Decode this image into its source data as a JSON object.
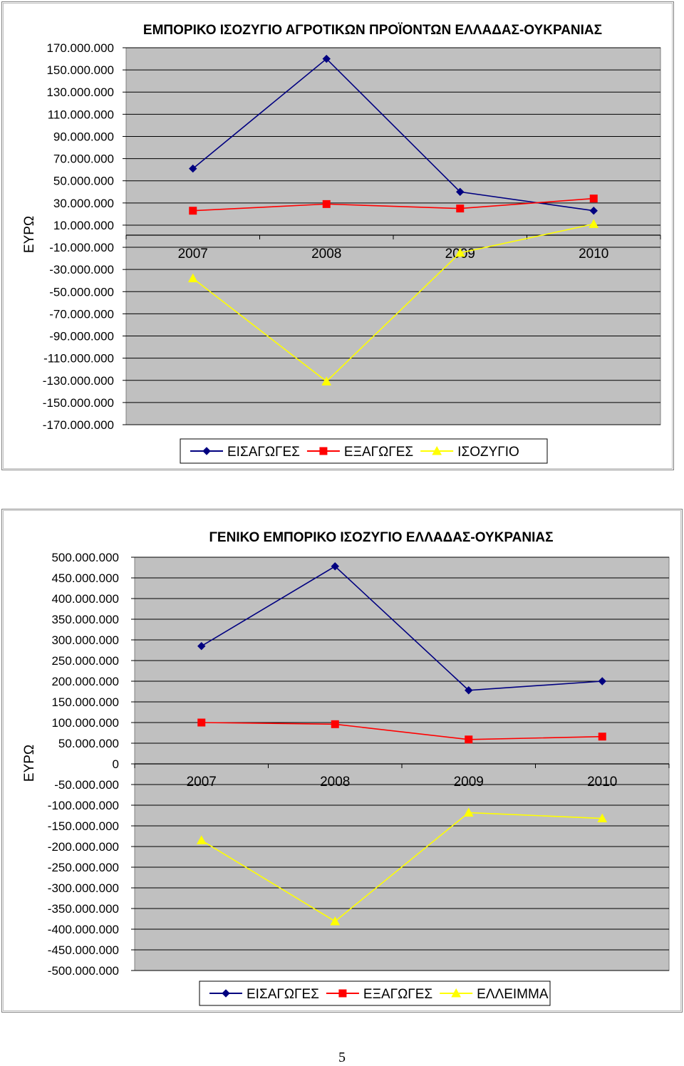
{
  "chart_data": [
    {
      "type": "line",
      "title": "ΕΜΠΟΡΙΚΟ ΙΣΟΖΥΓΙΟ ΑΓΡΟΤΙΚΩΝ ΠΡΟΪΟΝΤΩΝ ΕΛΛΑΔΑΣ-ΟΥΚΡΑΝΙΑΣ",
      "ylabel": "ΕΥΡΩ",
      "xlabel": "",
      "categories": [
        "2007",
        "2008",
        "2009",
        "2010"
      ],
      "ylim": [
        -170000000,
        170000000
      ],
      "yticks": [
        170000000,
        150000000,
        130000000,
        110000000,
        90000000,
        70000000,
        50000000,
        30000000,
        10000000,
        -10000000,
        -30000000,
        -50000000,
        -70000000,
        -90000000,
        -110000000,
        -130000000,
        -150000000,
        -170000000
      ],
      "ytick_labels": [
        "170.000.000",
        "150.000.000",
        "130.000.000",
        "110.000.000",
        "90.000.000",
        "70.000.000",
        "50.000.000",
        "30.000.000",
        "10.000.000",
        "-10.000.000",
        "-30.000.000",
        "-50.000.000",
        "-70.000.000",
        "-90.000.000",
        "-110.000.000",
        "-130.000.000",
        "-150.000.000",
        "-170.000.000"
      ],
      "grid": true,
      "legend": "bottom",
      "series": [
        {
          "name": "ΕΙΣΑΓΩΓΕΣ",
          "color": "#000080",
          "marker": "diamond",
          "values": [
            61000000,
            160000000,
            40000000,
            23000000
          ]
        },
        {
          "name": "ΕΞΑΓΩΓΕΣ",
          "color": "#ff0000",
          "marker": "square",
          "values": [
            23000000,
            29000000,
            25000000,
            34000000
          ]
        },
        {
          "name": "ΙΣΟΖΥΓΙΟ",
          "color": "#ffff00",
          "marker": "triangle",
          "values": [
            -38000000,
            -131000000,
            -15000000,
            11000000
          ]
        }
      ]
    },
    {
      "type": "line",
      "title": "ΓΕΝΙΚΟ ΕΜΠΟΡΙΚΟ ΙΣΟΖΥΓΙΟ ΕΛΛΑΔΑΣ-ΟΥΚΡΑΝΙΑΣ",
      "ylabel": "ΕΥΡΩ",
      "xlabel": "",
      "categories": [
        "2007",
        "2008",
        "2009",
        "2010"
      ],
      "ylim": [
        -500000000,
        500000000
      ],
      "yticks": [
        500000000,
        450000000,
        400000000,
        350000000,
        300000000,
        250000000,
        200000000,
        150000000,
        100000000,
        50000000,
        0,
        -50000000,
        -100000000,
        -150000000,
        -200000000,
        -250000000,
        -300000000,
        -350000000,
        -400000000,
        -450000000,
        -500000000
      ],
      "ytick_labels": [
        "500.000.000",
        "450.000.000",
        "400.000.000",
        "350.000.000",
        "300.000.000",
        "250.000.000",
        "200.000.000",
        "150.000.000",
        "100.000.000",
        "50.000.000",
        "0",
        "-50.000.000",
        "-100.000.000",
        "-150.000.000",
        "-200.000.000",
        "-250.000.000",
        "-300.000.000",
        "-350.000.000",
        "-400.000.000",
        "-450.000.000",
        "-500.000.000"
      ],
      "grid": true,
      "legend": "bottom",
      "series": [
        {
          "name": "ΕΙΣΑΓΩΓΕΣ",
          "color": "#000080",
          "marker": "diamond",
          "values": [
            285000000,
            478000000,
            178000000,
            200000000
          ]
        },
        {
          "name": "ΕΞΑΓΩΓΕΣ",
          "color": "#ff0000",
          "marker": "square",
          "values": [
            100000000,
            96000000,
            59000000,
            66000000
          ]
        },
        {
          "name": "ΕΛΛΕΙΜΜΑ",
          "color": "#ffff00",
          "marker": "triangle",
          "values": [
            -185000000,
            -381000000,
            -118000000,
            -132000000
          ]
        }
      ]
    }
  ],
  "page": {
    "number": "5"
  }
}
